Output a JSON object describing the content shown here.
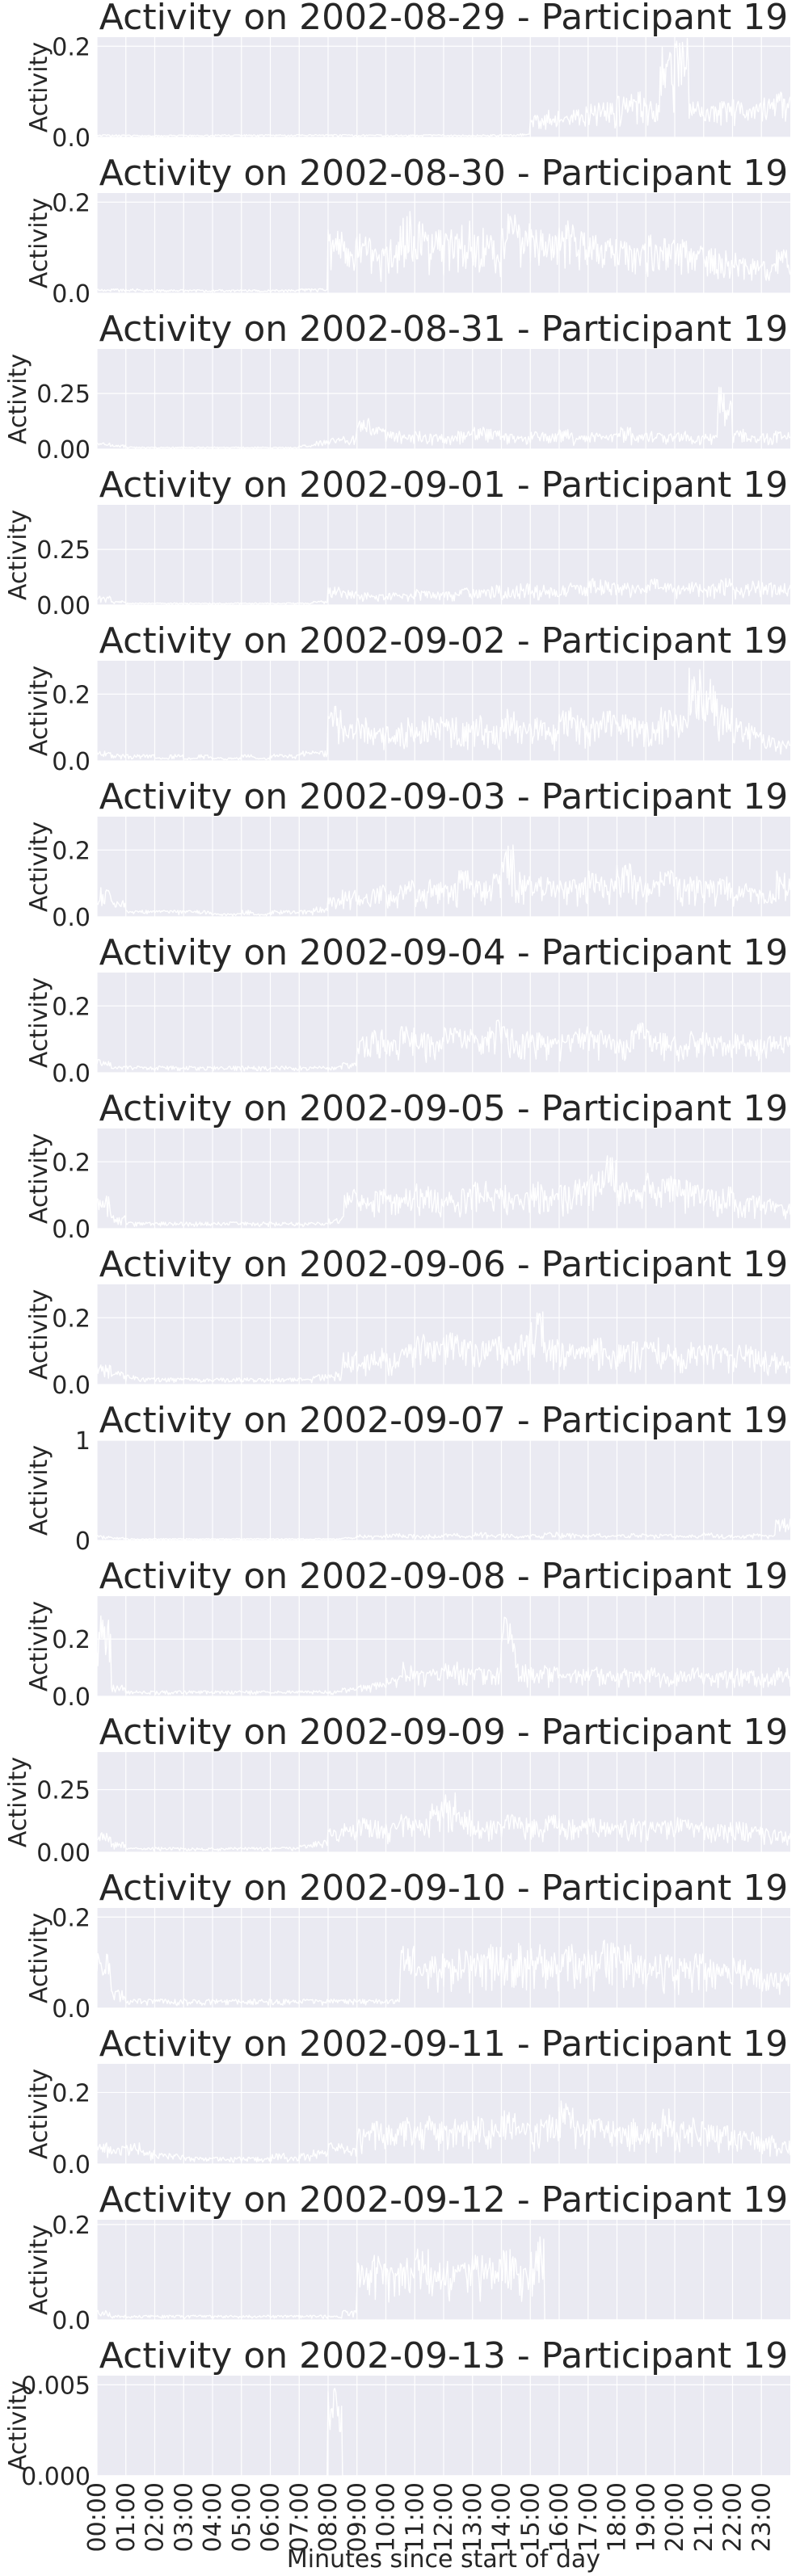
{
  "chart_data": {
    "type": "area",
    "colors": {
      "plot_bg": "#eaeaf2",
      "grid": "#ffffff",
      "line": "#ffffff",
      "text": "#262626"
    },
    "grid": true,
    "xlabel": "Minutes since start of day",
    "x_tick_labels": [
      "00:00",
      "01:00",
      "02:00",
      "03:00",
      "04:00",
      "05:00",
      "06:00",
      "07:00",
      "08:00",
      "09:00",
      "10:00",
      "11:00",
      "12:00",
      "13:00",
      "14:00",
      "15:00",
      "16:00",
      "17:00",
      "18:00",
      "19:00",
      "20:00",
      "21:00",
      "22:00",
      "23:00"
    ],
    "xlim": [
      0,
      1440
    ],
    "panels": [
      {
        "title": "Activity on 2002-08-29 - Participant 19",
        "ylabel": "Activity",
        "ylim": [
          0,
          0.22
        ],
        "ticks": [
          0,
          0.2
        ],
        "tick_labels": [
          "0.0",
          "0.2"
        ],
        "profile": [
          0.006,
          0.006,
          0.005,
          0.005,
          0.005,
          0.005,
          0.005,
          0.005,
          0.006,
          0.006,
          0.006,
          0.006,
          0.006,
          0.006,
          0.006,
          0.006,
          0.006,
          0.006,
          0.006,
          0.006,
          0.006,
          0.006,
          0.006,
          0.006,
          0.006,
          0.006,
          0.006,
          0.006,
          0.006,
          0.008,
          0.05,
          0.06,
          0.05,
          0.07,
          0.08,
          0.08,
          0.09,
          0.1,
          0.09,
          0.2,
          0.22,
          0.08,
          0.07,
          0.08,
          0.09,
          0.08,
          0.09,
          0.1
        ]
      },
      {
        "title": "Activity on 2002-08-30 - Participant 19",
        "ylabel": "Activity",
        "ylim": [
          0,
          0.22
        ],
        "ticks": [
          0,
          0.2
        ],
        "tick_labels": [
          "0.0",
          "0.2"
        ],
        "profile": [
          0.01,
          0.01,
          0.01,
          0.008,
          0.008,
          0.008,
          0.008,
          0.008,
          0.008,
          0.008,
          0.008,
          0.008,
          0.008,
          0.008,
          0.01,
          0.01,
          0.14,
          0.12,
          0.13,
          0.1,
          0.12,
          0.18,
          0.16,
          0.15,
          0.14,
          0.16,
          0.15,
          0.13,
          0.18,
          0.16,
          0.14,
          0.13,
          0.17,
          0.15,
          0.13,
          0.12,
          0.12,
          0.11,
          0.13,
          0.12,
          0.12,
          0.11,
          0.1,
          0.1,
          0.09,
          0.08,
          0.07,
          0.1
        ]
      },
      {
        "title": "Activity on 2002-08-31 - Participant 19",
        "ylabel": "Activity",
        "ylim": [
          0,
          0.45
        ],
        "ticks": [
          0,
          0.25
        ],
        "tick_labels": [
          "0.00",
          "0.25"
        ],
        "profile": [
          0.03,
          0.02,
          0.01,
          0.01,
          0.01,
          0.01,
          0.01,
          0.01,
          0.01,
          0.01,
          0.01,
          0.01,
          0.01,
          0.01,
          0.02,
          0.04,
          0.05,
          0.06,
          0.14,
          0.1,
          0.08,
          0.07,
          0.08,
          0.07,
          0.06,
          0.08,
          0.1,
          0.09,
          0.07,
          0.06,
          0.08,
          0.07,
          0.09,
          0.06,
          0.08,
          0.07,
          0.1,
          0.07,
          0.08,
          0.07,
          0.08,
          0.06,
          0.07,
          0.28,
          0.09,
          0.06,
          0.07,
          0.09
        ]
      },
      {
        "title": "Activity on 2002-09-01 - Participant 19",
        "ylabel": "Activity",
        "ylim": [
          0,
          0.45
        ],
        "ticks": [
          0,
          0.25
        ],
        "tick_labels": [
          "0.00",
          "0.25"
        ],
        "profile": [
          0.04,
          0.02,
          0.01,
          0.01,
          0.01,
          0.01,
          0.01,
          0.01,
          0.01,
          0.01,
          0.01,
          0.01,
          0.01,
          0.01,
          0.01,
          0.02,
          0.08,
          0.07,
          0.06,
          0.05,
          0.06,
          0.05,
          0.07,
          0.06,
          0.06,
          0.08,
          0.07,
          0.09,
          0.08,
          0.1,
          0.09,
          0.08,
          0.1,
          0.09,
          0.12,
          0.11,
          0.1,
          0.09,
          0.12,
          0.1,
          0.09,
          0.11,
          0.1,
          0.12,
          0.09,
          0.11,
          0.1,
          0.1
        ]
      },
      {
        "title": "Activity on 2002-09-02 - Participant 19",
        "ylabel": "Activity",
        "ylim": [
          0,
          0.3
        ],
        "ticks": [
          0,
          0.2
        ],
        "tick_labels": [
          "0.0",
          "0.2"
        ],
        "profile": [
          0.03,
          0.02,
          0.02,
          0.02,
          0.01,
          0.02,
          0.01,
          0.02,
          0.01,
          0.01,
          0.02,
          0.01,
          0.02,
          0.02,
          0.03,
          0.03,
          0.17,
          0.12,
          0.13,
          0.1,
          0.11,
          0.13,
          0.12,
          0.14,
          0.13,
          0.12,
          0.15,
          0.11,
          0.16,
          0.12,
          0.13,
          0.12,
          0.16,
          0.14,
          0.13,
          0.15,
          0.14,
          0.13,
          0.12,
          0.16,
          0.14,
          0.29,
          0.27,
          0.17,
          0.13,
          0.12,
          0.08,
          0.06
        ]
      },
      {
        "title": "Activity on 2002-09-03 - Participant 19",
        "ylabel": "Activity",
        "ylim": [
          0,
          0.3
        ],
        "ticks": [
          0,
          0.2
        ],
        "tick_labels": [
          "0.0",
          "0.2"
        ],
        "profile": [
          0.09,
          0.05,
          0.02,
          0.02,
          0.02,
          0.02,
          0.02,
          0.02,
          0.01,
          0.01,
          0.02,
          0.01,
          0.02,
          0.02,
          0.02,
          0.03,
          0.06,
          0.08,
          0.07,
          0.1,
          0.08,
          0.11,
          0.09,
          0.12,
          0.1,
          0.14,
          0.11,
          0.13,
          0.22,
          0.14,
          0.12,
          0.13,
          0.11,
          0.12,
          0.14,
          0.12,
          0.16,
          0.13,
          0.12,
          0.14,
          0.12,
          0.13,
          0.11,
          0.12,
          0.1,
          0.09,
          0.08,
          0.14
        ]
      },
      {
        "title": "Activity on 2002-09-04 - Participant 19",
        "ylabel": "Activity",
        "ylim": [
          0,
          0.3
        ],
        "ticks": [
          0,
          0.2
        ],
        "tick_labels": [
          "0.0",
          "0.2"
        ],
        "profile": [
          0.04,
          0.02,
          0.02,
          0.02,
          0.02,
          0.02,
          0.02,
          0.02,
          0.02,
          0.02,
          0.02,
          0.02,
          0.02,
          0.02,
          0.02,
          0.02,
          0.02,
          0.03,
          0.12,
          0.13,
          0.1,
          0.14,
          0.12,
          0.11,
          0.15,
          0.13,
          0.12,
          0.17,
          0.14,
          0.13,
          0.12,
          0.11,
          0.12,
          0.14,
          0.13,
          0.12,
          0.1,
          0.15,
          0.13,
          0.12,
          0.11,
          0.13,
          0.12,
          0.11,
          0.12,
          0.1,
          0.11,
          0.12
        ]
      },
      {
        "title": "Activity on 2002-09-05 - Participant 19",
        "ylabel": "Activity",
        "ylim": [
          0,
          0.3
        ],
        "ticks": [
          0,
          0.2
        ],
        "tick_labels": [
          "0.0",
          "0.2"
        ],
        "profile": [
          0.1,
          0.04,
          0.02,
          0.02,
          0.02,
          0.02,
          0.02,
          0.02,
          0.02,
          0.02,
          0.02,
          0.02,
          0.02,
          0.02,
          0.02,
          0.02,
          0.03,
          0.12,
          0.1,
          0.13,
          0.11,
          0.12,
          0.14,
          0.12,
          0.11,
          0.13,
          0.15,
          0.12,
          0.13,
          0.11,
          0.14,
          0.12,
          0.13,
          0.15,
          0.17,
          0.22,
          0.14,
          0.13,
          0.17,
          0.16,
          0.15,
          0.14,
          0.12,
          0.13,
          0.11,
          0.1,
          0.09,
          0.08
        ]
      },
      {
        "title": "Activity on 2002-09-06 - Participant 19",
        "ylabel": "Activity",
        "ylim": [
          0,
          0.3
        ],
        "ticks": [
          0,
          0.2
        ],
        "tick_labels": [
          "0.0",
          "0.2"
        ],
        "profile": [
          0.06,
          0.04,
          0.03,
          0.02,
          0.02,
          0.02,
          0.02,
          0.02,
          0.02,
          0.02,
          0.02,
          0.02,
          0.02,
          0.02,
          0.02,
          0.03,
          0.04,
          0.1,
          0.09,
          0.11,
          0.1,
          0.12,
          0.15,
          0.13,
          0.16,
          0.15,
          0.14,
          0.16,
          0.13,
          0.15,
          0.22,
          0.14,
          0.13,
          0.12,
          0.14,
          0.13,
          0.12,
          0.13,
          0.14,
          0.12,
          0.11,
          0.13,
          0.12,
          0.11,
          0.13,
          0.12,
          0.1,
          0.09
        ]
      },
      {
        "title": "Activity on 2002-09-07 - Participant 19",
        "ylabel": "Activity",
        "ylim": [
          0,
          1.0
        ],
        "ticks": [
          0,
          1
        ],
        "tick_labels": [
          "0",
          "1"
        ],
        "profile": [
          0.05,
          0.03,
          0.02,
          0.02,
          0.02,
          0.02,
          0.02,
          0.02,
          0.02,
          0.02,
          0.02,
          0.02,
          0.02,
          0.02,
          0.02,
          0.02,
          0.02,
          0.03,
          0.06,
          0.05,
          0.07,
          0.06,
          0.05,
          0.06,
          0.07,
          0.05,
          0.08,
          0.06,
          0.07,
          0.05,
          0.06,
          0.08,
          0.07,
          0.06,
          0.07,
          0.05,
          0.06,
          0.07,
          0.06,
          0.07,
          0.05,
          0.06,
          0.08,
          0.06,
          0.05,
          0.07,
          0.06,
          0.22
        ]
      },
      {
        "title": "Activity on 2002-09-08 - Participant 19",
        "ylabel": "Activity",
        "ylim": [
          0,
          0.35
        ],
        "ticks": [
          0,
          0.2
        ],
        "tick_labels": [
          "0.0",
          "0.2"
        ],
        "profile": [
          0.3,
          0.04,
          0.02,
          0.02,
          0.02,
          0.02,
          0.02,
          0.02,
          0.02,
          0.02,
          0.02,
          0.02,
          0.02,
          0.02,
          0.02,
          0.02,
          0.02,
          0.03,
          0.04,
          0.05,
          0.07,
          0.12,
          0.09,
          0.1,
          0.13,
          0.1,
          0.11,
          0.1,
          0.28,
          0.12,
          0.1,
          0.11,
          0.09,
          0.1,
          0.11,
          0.09,
          0.1,
          0.09,
          0.1,
          0.08,
          0.09,
          0.1,
          0.08,
          0.09,
          0.1,
          0.09,
          0.08,
          0.1
        ]
      },
      {
        "title": "Activity on 2002-09-09 - Participant 19",
        "ylabel": "Activity",
        "ylim": [
          0,
          0.4
        ],
        "ticks": [
          0,
          0.25
        ],
        "tick_labels": [
          "0.00",
          "0.25"
        ],
        "profile": [
          0.08,
          0.04,
          0.02,
          0.02,
          0.02,
          0.02,
          0.02,
          0.02,
          0.02,
          0.02,
          0.02,
          0.02,
          0.02,
          0.02,
          0.03,
          0.05,
          0.1,
          0.12,
          0.14,
          0.13,
          0.12,
          0.15,
          0.14,
          0.2,
          0.24,
          0.18,
          0.14,
          0.13,
          0.15,
          0.14,
          0.13,
          0.15,
          0.14,
          0.13,
          0.14,
          0.12,
          0.13,
          0.14,
          0.12,
          0.13,
          0.14,
          0.12,
          0.11,
          0.12,
          0.13,
          0.11,
          0.1,
          0.09
        ]
      },
      {
        "title": "Activity on 2002-09-10 - Participant 19",
        "ylabel": "Activity",
        "ylim": [
          0,
          0.22
        ],
        "ticks": [
          0,
          0.2
        ],
        "tick_labels": [
          "0.0",
          "0.2"
        ],
        "profile": [
          0.12,
          0.04,
          0.02,
          0.02,
          0.02,
          0.02,
          0.02,
          0.02,
          0.02,
          0.02,
          0.02,
          0.02,
          0.02,
          0.02,
          0.02,
          0.02,
          0.02,
          0.02,
          0.02,
          0.02,
          0.02,
          0.14,
          0.1,
          0.12,
          0.11,
          0.13,
          0.12,
          0.14,
          0.13,
          0.15,
          0.14,
          0.13,
          0.14,
          0.12,
          0.13,
          0.15,
          0.14,
          0.12,
          0.13,
          0.12,
          0.11,
          0.12,
          0.11,
          0.1,
          0.11,
          0.1,
          0.09,
          0.08
        ]
      },
      {
        "title": "Activity on 2002-09-11 - Participant 19",
        "ylabel": "Activity",
        "ylim": [
          0,
          0.28
        ],
        "ticks": [
          0,
          0.2
        ],
        "tick_labels": [
          "0.0",
          "0.2"
        ],
        "profile": [
          0.06,
          0.05,
          0.06,
          0.04,
          0.03,
          0.03,
          0.02,
          0.02,
          0.02,
          0.02,
          0.02,
          0.02,
          0.03,
          0.02,
          0.03,
          0.04,
          0.06,
          0.05,
          0.1,
          0.12,
          0.11,
          0.13,
          0.12,
          0.14,
          0.13,
          0.12,
          0.14,
          0.13,
          0.15,
          0.12,
          0.13,
          0.14,
          0.2,
          0.12,
          0.13,
          0.12,
          0.11,
          0.13,
          0.12,
          0.16,
          0.12,
          0.13,
          0.12,
          0.11,
          0.1,
          0.09,
          0.08,
          0.07
        ]
      },
      {
        "title": "Activity on 2002-09-12 - Participant 19",
        "ylabel": "Activity",
        "ylim": [
          0,
          0.21
        ],
        "ticks": [
          0,
          0.2
        ],
        "tick_labels": [
          "0.0",
          "0.2"
        ],
        "profile": [
          0.02,
          0.01,
          0.01,
          0.01,
          0.01,
          0.01,
          0.01,
          0.01,
          0.01,
          0.01,
          0.01,
          0.01,
          0.01,
          0.01,
          0.01,
          0.01,
          0.01,
          0.02,
          0.12,
          0.14,
          0.11,
          0.13,
          0.15,
          0.12,
          0.13,
          0.12,
          0.14,
          0.13,
          0.15,
          0.13,
          0.19,
          0,
          0,
          0,
          0,
          0,
          0,
          0,
          0,
          0,
          0,
          0,
          0,
          0,
          0,
          0,
          0,
          0
        ]
      },
      {
        "title": "Activity on 2002-09-13 - Participant 19",
        "ylabel": "Activity",
        "ylim": [
          0,
          0.0055
        ],
        "ticks": [
          0,
          0.005
        ],
        "tick_labels": [
          "0.000",
          "0.005"
        ],
        "profile": [
          0,
          0,
          0,
          0,
          0,
          0,
          0,
          0,
          0,
          0,
          0,
          0,
          0,
          0,
          0,
          0,
          0.005,
          0,
          0,
          0,
          0,
          0,
          0,
          0,
          0,
          0,
          0,
          0,
          0,
          0,
          0,
          0,
          0,
          0,
          0,
          0,
          0,
          0,
          0,
          0,
          0,
          0,
          0,
          0,
          0,
          0,
          0,
          0
        ]
      }
    ]
  }
}
